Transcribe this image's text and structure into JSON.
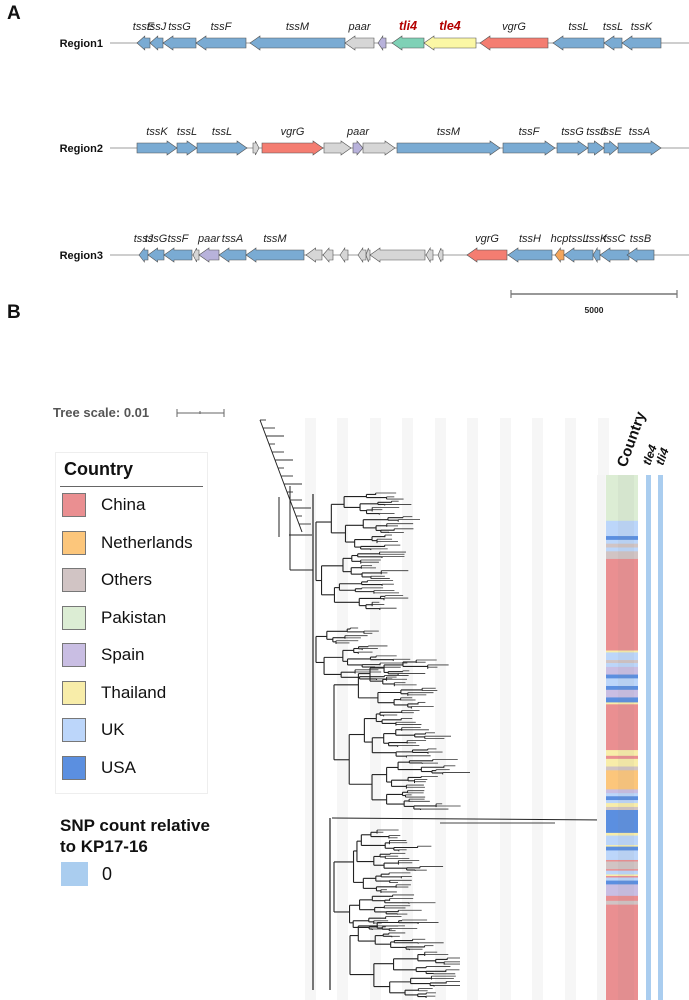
{
  "panels": {
    "a_label": "A",
    "b_label": "B"
  },
  "colors": {
    "tss_blue": "#7aabd3",
    "vgrg_red": "#f47d71",
    "paar_purple": "#b8b2db",
    "tli4_teal": "#7fd1b6",
    "tle4_yellow": "#fbf7a5",
    "hcp_orange": "#f4a55a",
    "other_gray": "#d6d6d6",
    "highlight_red": "#b30000",
    "snp_blue": "#aacdef"
  },
  "gene_clusters": {
    "scale_bar_label": "5000",
    "regions": [
      {
        "name": "Region1",
        "genes": [
          {
            "label": "tssE",
            "type": "tss",
            "dir": "left"
          },
          {
            "label": "tssJ",
            "type": "tss",
            "dir": "left"
          },
          {
            "label": "tssG",
            "type": "tss",
            "dir": "left"
          },
          {
            "label": "tssF",
            "type": "tss",
            "dir": "left"
          },
          {
            "label": "tssM",
            "type": "tss",
            "dir": "left"
          },
          {
            "label": "paar",
            "type": "other",
            "dir": "left"
          },
          {
            "label": "",
            "type": "paar",
            "dir": "left"
          },
          {
            "label": "tli4",
            "type": "tli4",
            "dir": "left",
            "highlight": true
          },
          {
            "label": "tle4",
            "type": "tle4",
            "dir": "left",
            "highlight": true
          },
          {
            "label": "vgrG",
            "type": "vgrg",
            "dir": "left"
          },
          {
            "label": "tssL",
            "type": "tss",
            "dir": "left"
          },
          {
            "label": "tssL",
            "type": "tss",
            "dir": "left"
          },
          {
            "label": "tssK",
            "type": "tss",
            "dir": "left"
          }
        ]
      },
      {
        "name": "Region2",
        "genes": [
          {
            "label": "tssK",
            "type": "tss",
            "dir": "right"
          },
          {
            "label": "tssL",
            "type": "tss",
            "dir": "right"
          },
          {
            "label": "tssL",
            "type": "tss",
            "dir": "right"
          },
          {
            "label": "",
            "type": "other",
            "dir": "right"
          },
          {
            "label": "vgrG",
            "type": "vgrg",
            "dir": "right"
          },
          {
            "label": "",
            "type": "other",
            "dir": "right"
          },
          {
            "label": "paar",
            "type": "paar",
            "dir": "right"
          },
          {
            "label": "",
            "type": "other",
            "dir": "right"
          },
          {
            "label": "tssM",
            "type": "tss",
            "dir": "right"
          },
          {
            "label": "tssF",
            "type": "tss",
            "dir": "right"
          },
          {
            "label": "tssG",
            "type": "tss",
            "dir": "right"
          },
          {
            "label": "tssJ",
            "type": "tss",
            "dir": "right"
          },
          {
            "label": "tssE",
            "type": "tss",
            "dir": "right"
          },
          {
            "label": "tssA",
            "type": "tss",
            "dir": "right"
          }
        ]
      },
      {
        "name": "Region3",
        "genes": [
          {
            "label": "tssJ",
            "type": "tss",
            "dir": "left"
          },
          {
            "label": "tssG",
            "type": "tss",
            "dir": "left"
          },
          {
            "label": "tssF",
            "type": "tss",
            "dir": "left"
          },
          {
            "label": "",
            "type": "other",
            "dir": "left"
          },
          {
            "label": "paar",
            "type": "paar",
            "dir": "left"
          },
          {
            "label": "tssA",
            "type": "tss",
            "dir": "left"
          },
          {
            "label": "tssM",
            "type": "tss",
            "dir": "left"
          },
          {
            "label": "",
            "type": "other",
            "dir": "left"
          },
          {
            "label": "",
            "type": "other",
            "dir": "left"
          },
          {
            "label": "",
            "type": "other",
            "dir": "left"
          },
          {
            "label": "",
            "type": "other",
            "dir": "left"
          },
          {
            "label": "",
            "type": "other",
            "dir": "left"
          },
          {
            "label": "",
            "type": "other",
            "dir": "left"
          },
          {
            "label": "",
            "type": "other",
            "dir": "left"
          },
          {
            "label": "",
            "type": "other",
            "dir": "left"
          },
          {
            "label": "vgrG",
            "type": "vgrg",
            "dir": "left"
          },
          {
            "label": "tssH",
            "type": "tss",
            "dir": "left"
          },
          {
            "label": "hcp",
            "type": "hcp",
            "dir": "left"
          },
          {
            "label": "tssL",
            "type": "tss",
            "dir": "left"
          },
          {
            "label": "tssK",
            "type": "tss",
            "dir": "left"
          },
          {
            "label": "tssC",
            "type": "tss",
            "dir": "left"
          },
          {
            "label": "tssB",
            "type": "tss",
            "dir": "left"
          }
        ]
      }
    ]
  },
  "tree": {
    "scale_label": "Tree scale: 0.01",
    "column_headers": [
      "Country",
      "tle4",
      "tli4"
    ]
  },
  "country_legend": {
    "title": "Country",
    "items": [
      {
        "label": "China",
        "color": "#ea8f91"
      },
      {
        "label": "Netherlands",
        "color": "#fcc67b"
      },
      {
        "label": "Others",
        "color": "#d1c4c4"
      },
      {
        "label": "Pakistan",
        "color": "#dcedd4"
      },
      {
        "label": "Spain",
        "color": "#c9bee3"
      },
      {
        "label": "Thailand",
        "color": "#f8eda9"
      },
      {
        "label": "UK",
        "color": "#bcd6fa"
      },
      {
        "label": "USA",
        "color": "#5b8fe0"
      }
    ]
  },
  "snp_legend": {
    "title": "SNP count relative to KP17-16",
    "value": "0"
  },
  "country_strip": [
    {
      "country": "Pakistan",
      "share": 12
    },
    {
      "country": "UK",
      "share": 4
    },
    {
      "country": "USA",
      "share": 1
    },
    {
      "country": "UK",
      "share": 1
    },
    {
      "country": "Others",
      "share": 1
    },
    {
      "country": "UK",
      "share": 1
    },
    {
      "country": "Others",
      "share": 2
    },
    {
      "country": "China",
      "share": 24
    },
    {
      "country": "Thailand",
      "share": 0.5
    },
    {
      "country": "UK",
      "share": 2
    },
    {
      "country": "Others",
      "share": 0.8
    },
    {
      "country": "UK",
      "share": 1
    },
    {
      "country": "Spain",
      "share": 2
    },
    {
      "country": "USA",
      "share": 1
    },
    {
      "country": "UK",
      "share": 2
    },
    {
      "country": "USA",
      "share": 1
    },
    {
      "country": "Spain",
      "share": 2
    },
    {
      "country": "USA",
      "share": 1.3
    },
    {
      "country": "Thailand",
      "share": 0.5
    },
    {
      "country": "China",
      "share": 12
    },
    {
      "country": "Thailand",
      "share": 1.5
    },
    {
      "country": "China",
      "share": 0.8
    },
    {
      "country": "Thailand",
      "share": 2
    },
    {
      "country": "Others",
      "share": 1
    },
    {
      "country": "Netherlands",
      "share": 5
    },
    {
      "country": "Spain",
      "share": 1
    },
    {
      "country": "UK",
      "share": 0.8
    },
    {
      "country": "USA",
      "share": 1
    },
    {
      "country": "UK",
      "share": 0.8
    },
    {
      "country": "Thailand",
      "share": 1
    },
    {
      "country": "Others",
      "share": 0.8
    },
    {
      "country": "USA",
      "share": 6
    },
    {
      "country": "Thailand",
      "share": 0.7
    },
    {
      "country": "UK",
      "share": 2.5
    },
    {
      "country": "Thailand",
      "share": 0.4
    },
    {
      "country": "USA",
      "share": 1
    },
    {
      "country": "UK",
      "share": 2.5
    },
    {
      "country": "China",
      "share": 0.4
    },
    {
      "country": "Others",
      "share": 2
    },
    {
      "country": "China",
      "share": 0.4
    },
    {
      "country": "UK",
      "share": 1
    },
    {
      "country": "Thailand",
      "share": 0.4
    },
    {
      "country": "China",
      "share": 0.4
    },
    {
      "country": "UK",
      "share": 0.8
    },
    {
      "country": "USA",
      "share": 1
    },
    {
      "country": "Spain",
      "share": 3
    },
    {
      "country": "China",
      "share": 1.3
    },
    {
      "country": "Others",
      "share": 1
    },
    {
      "country": "China",
      "share": 25
    }
  ]
}
